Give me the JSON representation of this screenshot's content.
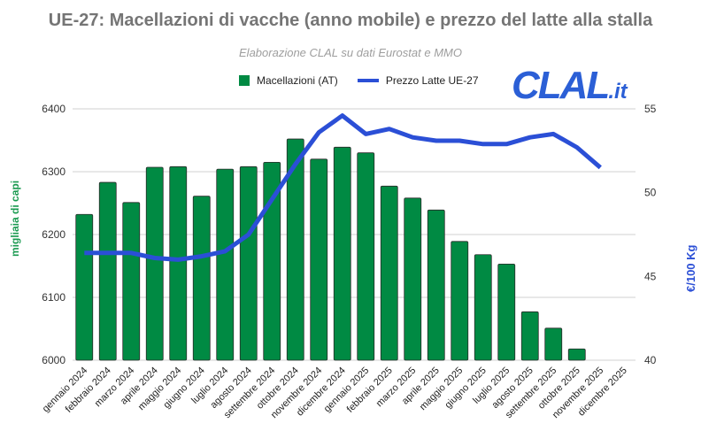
{
  "chart_data": {
    "type": "bar+line",
    "title": "UE-27: Macellazioni di vacche (anno mobile) e prezzo del latte alla stalla",
    "subtitle": "Elaborazione CLAL su dati Eurostat e MMO",
    "logo": "CLAL.it",
    "ylabel_left": "migliaia di capi",
    "ylabel_right": "€/100 Kg",
    "ylim_left": [
      6000,
      6400
    ],
    "yticks_left": [
      6000,
      6100,
      6200,
      6300,
      6400
    ],
    "ylim_right": [
      40,
      55
    ],
    "yticks_right": [
      40,
      45,
      50,
      55
    ],
    "grid": true,
    "legend_position": "top",
    "categories": [
      "gennaio 2024",
      "febbraio 2024",
      "marzo 2024",
      "aprile 2024",
      "maggio 2024",
      "giugno 2024",
      "luglio 2024",
      "agosto 2024",
      "settembre 2024",
      "ottobre 2024",
      "novembre 2024",
      "dicembre 2024",
      "gennaio 2025",
      "febbraio 2025",
      "marzo 2025",
      "aprile 2025",
      "maggio 2025",
      "giugno 2025",
      "luglio 2025",
      "agosto 2025",
      "settembre 2025",
      "ottobre 2025",
      "novembre 2025",
      "dicembre 2025"
    ],
    "series": [
      {
        "name": "Macellazioni (AT)",
        "type": "bar",
        "axis": "left",
        "color": "#008a43",
        "values": [
          6232,
          6283,
          6251,
          6307,
          6308,
          6261,
          6304,
          6308,
          6315,
          6352,
          6320,
          6339,
          6330,
          6277,
          6258,
          6239,
          6189,
          6168,
          6153,
          6077,
          6051,
          6018,
          null,
          null
        ]
      },
      {
        "name": "Prezzo Latte UE-27",
        "type": "line",
        "axis": "right",
        "color": "#2b4fd6",
        "values": [
          46.4,
          46.4,
          46.4,
          46.1,
          46.0,
          46.2,
          46.5,
          47.5,
          49.6,
          51.7,
          53.6,
          54.6,
          53.5,
          53.8,
          53.3,
          53.1,
          53.1,
          52.9,
          52.9,
          53.3,
          53.5,
          52.7,
          51.5,
          null
        ]
      }
    ]
  }
}
